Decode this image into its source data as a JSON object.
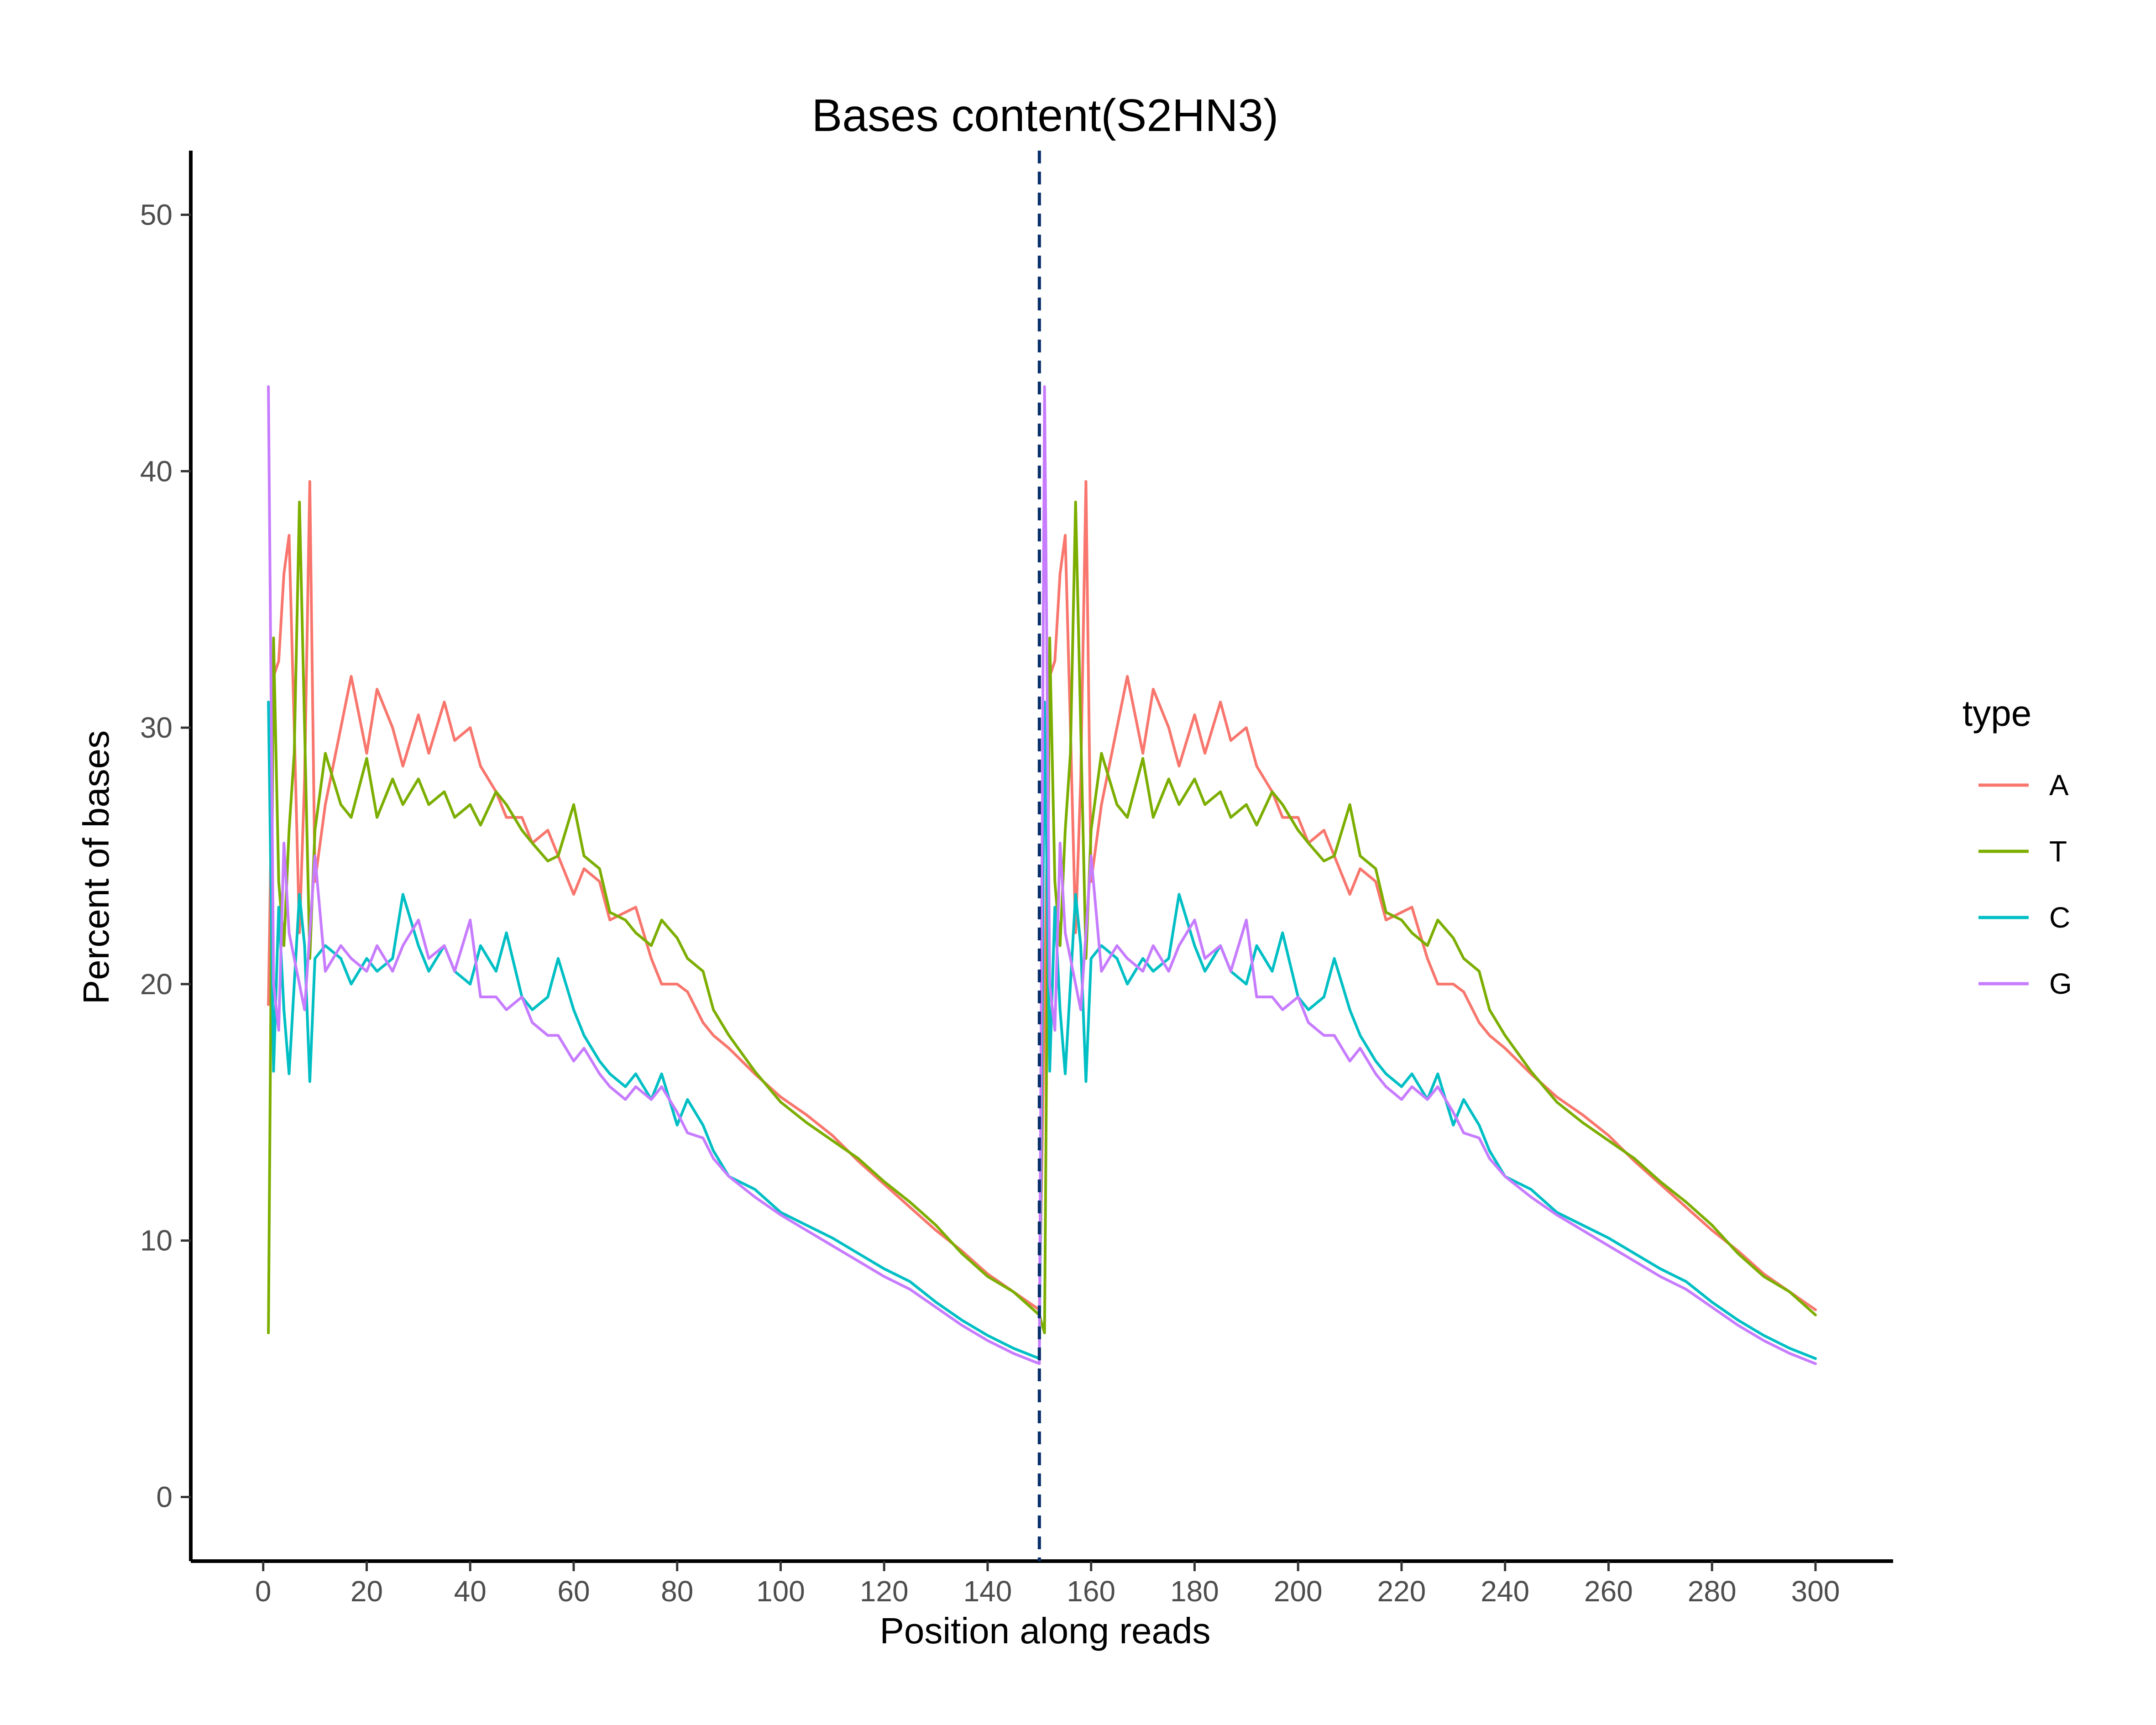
{
  "chart_data": {
    "type": "line",
    "title": "Bases content(S2HN3)",
    "xlabel": "Position along reads",
    "ylabel": "Percent of bases",
    "xlim": [
      -14,
      315
    ],
    "ylim": [
      -2.5,
      52.5
    ],
    "xticks": [
      0,
      20,
      40,
      60,
      80,
      100,
      120,
      140,
      160,
      180,
      200,
      220,
      240,
      260,
      280,
      300
    ],
    "yticks": [
      0,
      10,
      20,
      30,
      40,
      50
    ],
    "vline": {
      "x": 150,
      "color": "#08306B",
      "style": "dashed"
    },
    "legend": {
      "title": "type",
      "position": "right"
    },
    "grid": false,
    "series": [
      {
        "name": "A",
        "color": "#F8766D",
        "x": [
          1,
          2,
          3,
          4,
          5,
          6,
          7,
          8,
          9,
          10,
          12,
          15,
          17,
          20,
          22,
          25,
          27,
          30,
          32,
          35,
          37,
          40,
          42,
          45,
          47,
          50,
          52,
          55,
          57,
          60,
          62,
          65,
          67,
          70,
          72,
          75,
          77,
          80,
          82,
          85,
          87,
          90,
          95,
          100,
          105,
          110,
          115,
          120,
          125,
          130,
          135,
          140,
          145,
          150
        ],
        "y": [
          19.2,
          32.0,
          32.6,
          36.0,
          37.5,
          30.0,
          22.0,
          28.0,
          39.6,
          24.0,
          27.0,
          30.0,
          32.0,
          29.0,
          31.5,
          30.0,
          28.5,
          30.5,
          29.0,
          31.0,
          29.5,
          30.0,
          28.5,
          27.5,
          26.5,
          26.5,
          25.5,
          26.0,
          25.0,
          23.5,
          24.5,
          24.0,
          22.5,
          22.8,
          23.0,
          21.0,
          20.0,
          20.0,
          19.7,
          18.5,
          18.0,
          17.5,
          16.5,
          15.6,
          14.9,
          14.1,
          13.1,
          12.2,
          11.3,
          10.4,
          9.6,
          8.7,
          8.0,
          7.3
        ]
      },
      {
        "name": "T",
        "color": "#7CAE00",
        "x": [
          1,
          2,
          3,
          4,
          5,
          6,
          7,
          8,
          9,
          10,
          12,
          15,
          17,
          20,
          22,
          25,
          27,
          30,
          32,
          35,
          37,
          40,
          42,
          45,
          47,
          50,
          52,
          55,
          57,
          60,
          62,
          65,
          67,
          70,
          72,
          75,
          77,
          80,
          82,
          85,
          87,
          90,
          95,
          100,
          105,
          110,
          115,
          120,
          125,
          130,
          135,
          140,
          145,
          150
        ],
        "y": [
          6.4,
          33.5,
          24.0,
          21.5,
          26.0,
          29.0,
          38.8,
          30.0,
          21.0,
          26.0,
          29.0,
          27.0,
          26.5,
          28.8,
          26.5,
          28.0,
          27.0,
          28.0,
          27.0,
          27.5,
          26.5,
          27.0,
          26.2,
          27.5,
          27.0,
          26.0,
          25.5,
          24.8,
          25.0,
          27.0,
          25.0,
          24.5,
          22.8,
          22.5,
          22.0,
          21.5,
          22.5,
          21.8,
          21.0,
          20.5,
          19.0,
          18.0,
          16.6,
          15.4,
          14.6,
          13.9,
          13.2,
          12.3,
          11.5,
          10.6,
          9.5,
          8.6,
          8.0,
          7.1
        ]
      },
      {
        "name": "C",
        "color": "#00BFC4",
        "x": [
          1,
          2,
          3,
          4,
          5,
          6,
          7,
          8,
          9,
          10,
          12,
          15,
          17,
          20,
          22,
          25,
          27,
          30,
          32,
          35,
          37,
          40,
          42,
          45,
          47,
          50,
          52,
          55,
          57,
          60,
          62,
          65,
          67,
          70,
          72,
          75,
          77,
          80,
          82,
          85,
          87,
          90,
          95,
          100,
          105,
          110,
          115,
          120,
          125,
          130,
          135,
          140,
          145,
          150
        ],
        "y": [
          31.0,
          16.6,
          23.0,
          19.0,
          16.5,
          20.0,
          23.5,
          21.5,
          16.2,
          21.0,
          21.5,
          21.0,
          20.0,
          21.0,
          20.5,
          21.0,
          23.5,
          21.5,
          20.5,
          21.5,
          20.5,
          20.0,
          21.5,
          20.5,
          22.0,
          19.5,
          19.0,
          19.5,
          21.0,
          19.0,
          18.0,
          17.0,
          16.5,
          16.0,
          16.5,
          15.5,
          16.5,
          14.5,
          15.5,
          14.5,
          13.5,
          12.5,
          12.0,
          11.1,
          10.6,
          10.1,
          9.5,
          8.9,
          8.4,
          7.6,
          6.9,
          6.3,
          5.8,
          5.4
        ]
      },
      {
        "name": "G",
        "color": "#C77CFF",
        "x": [
          1,
          2,
          3,
          4,
          5,
          6,
          7,
          8,
          9,
          10,
          12,
          15,
          17,
          20,
          22,
          25,
          27,
          30,
          32,
          35,
          37,
          40,
          42,
          45,
          47,
          50,
          52,
          55,
          57,
          60,
          62,
          65,
          67,
          70,
          72,
          75,
          77,
          80,
          82,
          85,
          87,
          90,
          95,
          100,
          105,
          110,
          115,
          120,
          125,
          130,
          135,
          140,
          145,
          150
        ],
        "y": [
          43.3,
          20.0,
          18.2,
          25.5,
          22.0,
          21.0,
          20.0,
          19.0,
          22.0,
          25.0,
          20.5,
          21.5,
          21.0,
          20.5,
          21.5,
          20.5,
          21.5,
          22.5,
          21.0,
          21.5,
          20.5,
          22.5,
          19.5,
          19.5,
          19.0,
          19.5,
          18.5,
          18.0,
          18.0,
          17.0,
          17.5,
          16.5,
          16.0,
          15.5,
          16.0,
          15.5,
          16.0,
          15.0,
          14.2,
          14.0,
          13.2,
          12.5,
          11.7,
          11.0,
          10.4,
          9.8,
          9.2,
          8.6,
          8.1,
          7.4,
          6.7,
          6.1,
          5.6,
          5.2
        ]
      }
    ]
  }
}
